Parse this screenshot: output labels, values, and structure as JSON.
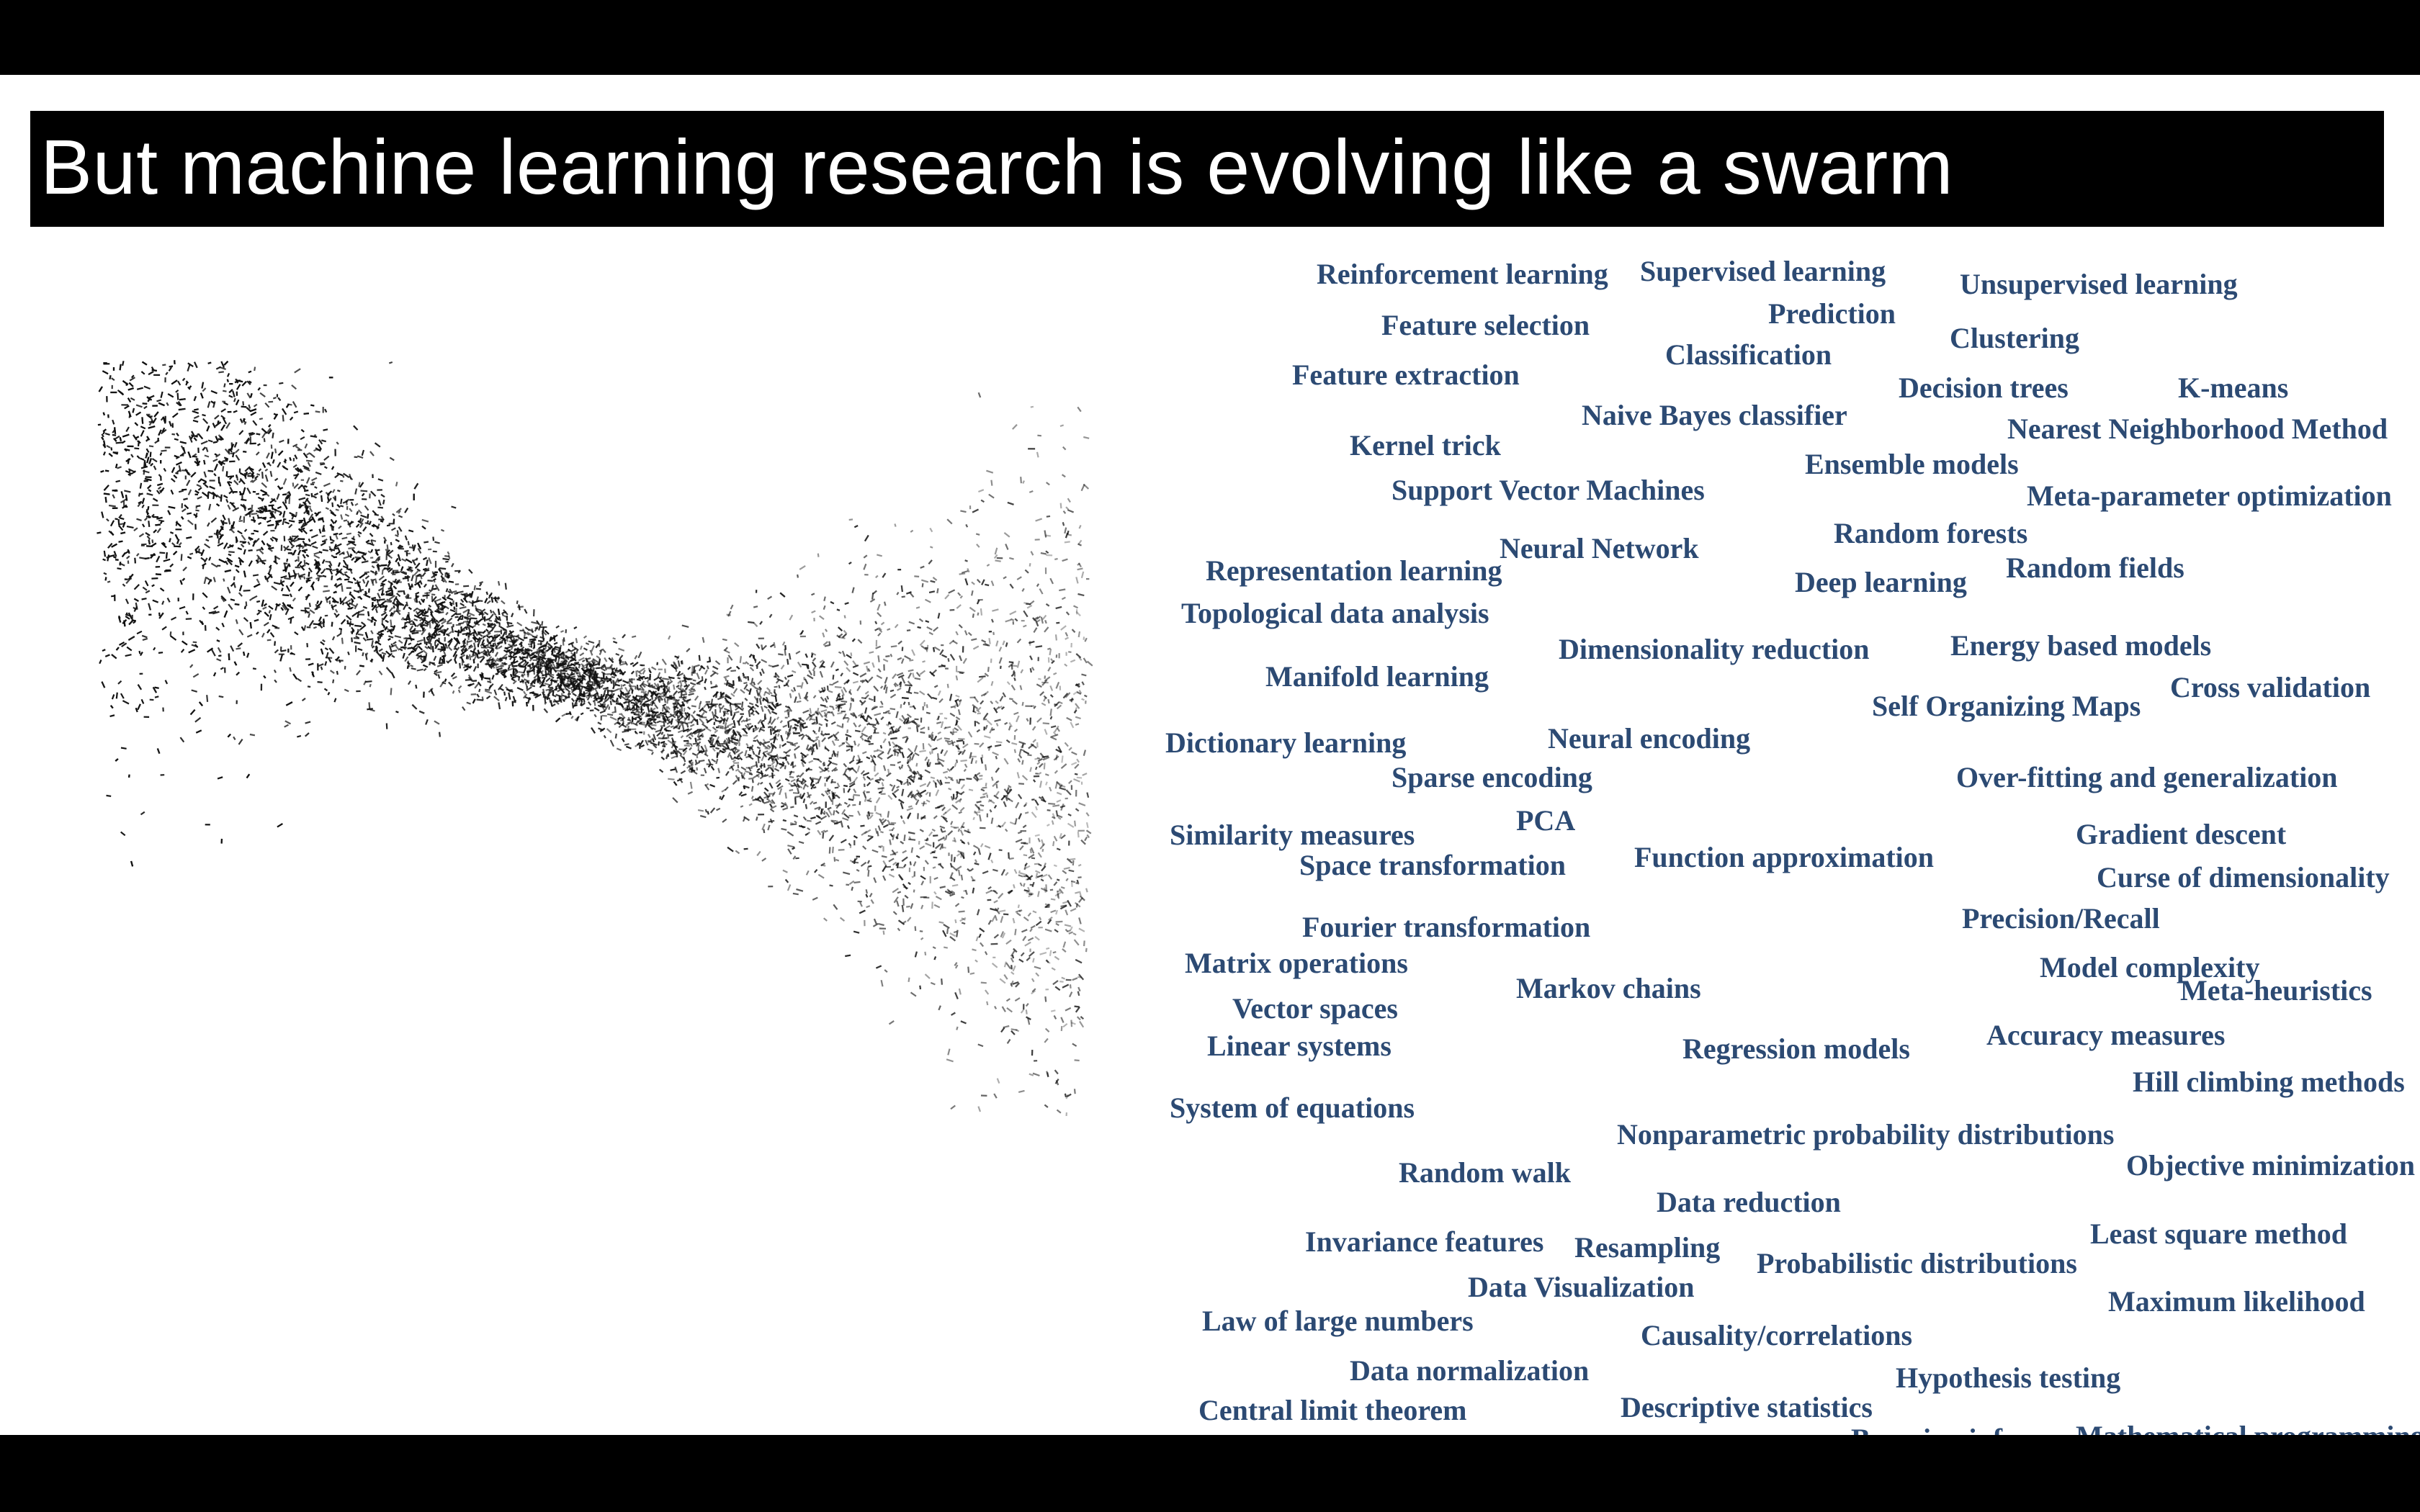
{
  "slide": {
    "title": "But machine learning research is evolving like a swarm",
    "term_color": "#2c4a73",
    "terms": [
      "Reinforcement learning",
      "Supervised learning",
      "Unsupervised learning",
      "Prediction",
      "Feature selection",
      "Clustering",
      "Classification",
      "Feature extraction",
      "Decision trees",
      "K-means",
      "Naive Bayes classifier",
      "Nearest Neighborhood Method",
      "Kernel trick",
      "Ensemble models",
      "Support Vector Machines",
      "Meta-parameter optimization",
      "Random forests",
      "Neural Network",
      "Representation learning",
      "Random fields",
      "Deep learning",
      "Topological data analysis",
      "Dimensionality reduction",
      "Energy based models",
      "Cross validation",
      "Manifold learning",
      "Self Organizing Maps",
      "Neural encoding",
      "Dictionary learning",
      "Sparse encoding",
      "Over-fitting and generalization",
      "PCA",
      "Gradient descent",
      "Similarity measures",
      "Function approximation",
      "Space transformation",
      "Curse of dimensionality",
      "Precision/Recall",
      "Fourier transformation",
      "Matrix operations",
      "Model complexity",
      "Meta-heuristics",
      "Markov chains",
      "Vector spaces",
      "Accuracy measures",
      "Linear systems",
      "Regression models",
      "Hill climbing methods",
      "System of equations",
      "Nonparametric probability distributions",
      "Objective minimization",
      "Random walk",
      "Data reduction",
      "Least square method",
      "Invariance features",
      "Resampling",
      "Probabilistic distributions",
      "Data Visualization",
      "Maximum likelihood",
      "Law of large numbers",
      "Causality/correlations",
      "Data normalization",
      "Hypothesis testing",
      "Central limit theorem",
      "Descriptive statistics",
      "Bayesian inference",
      "Mathematical programming"
    ]
  }
}
